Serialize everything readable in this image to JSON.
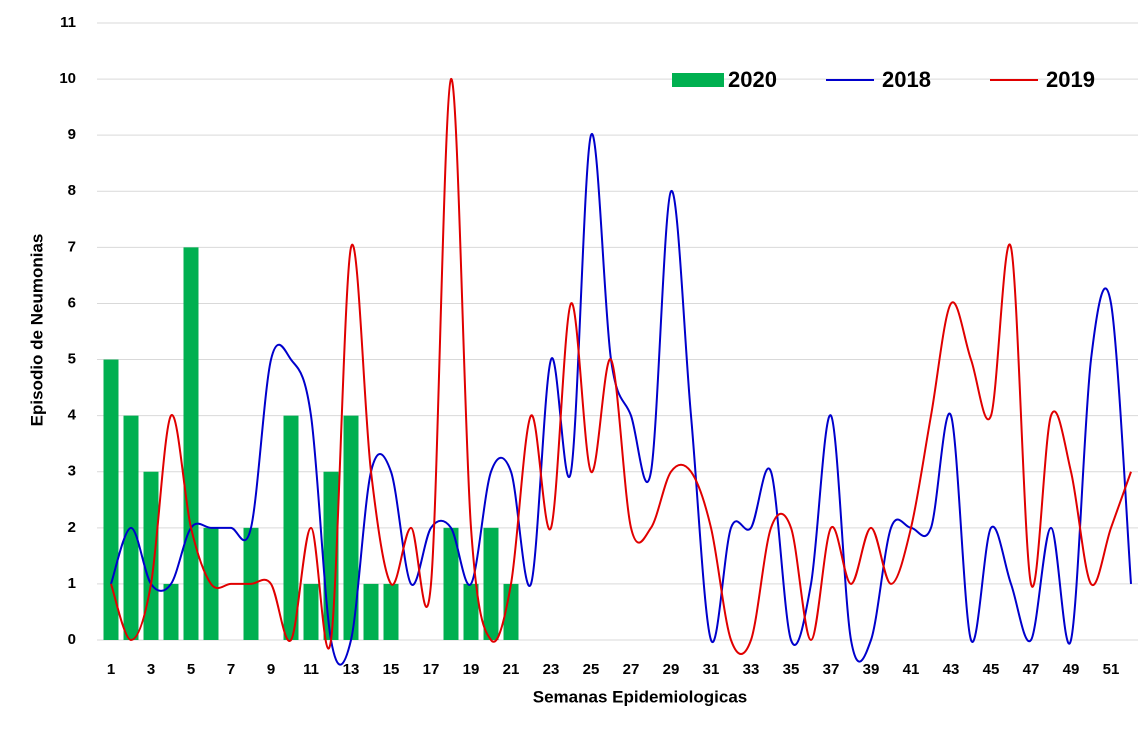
{
  "chart_data": {
    "type": "bar",
    "x_label": "Semanas Epidemiologicas",
    "y_label": "Episodio de Neumonias",
    "categories": [
      1,
      null,
      3,
      null,
      5,
      null,
      7,
      null,
      9,
      null,
      11,
      null,
      13,
      null,
      15,
      null,
      17,
      null,
      19,
      null,
      21,
      null,
      23,
      null,
      25,
      null,
      27,
      null,
      29,
      null,
      31,
      null,
      33,
      null,
      35,
      null,
      37,
      null,
      39,
      null,
      41,
      null,
      43,
      null,
      45,
      null,
      47,
      null,
      49,
      null,
      51,
      null
    ],
    "series": [
      {
        "name": "2020",
        "type": "bar",
        "color": "#00b050",
        "values": [
          5,
          4,
          3,
          1,
          7,
          2,
          0,
          2,
          0,
          4,
          1,
          3,
          4,
          1,
          1,
          0,
          0,
          2,
          1,
          2,
          1,
          null,
          null,
          null,
          null,
          null,
          null,
          null,
          null,
          null,
          null,
          null,
          null,
          null,
          null,
          null,
          null,
          null,
          null,
          null,
          null,
          null,
          null,
          null,
          null,
          null,
          null,
          null,
          null,
          null,
          null,
          null
        ]
      },
      {
        "name": "2018",
        "type": "line",
        "color": "#0000cc",
        "values": [
          1,
          2,
          1,
          1,
          2,
          2,
          2,
          2,
          5,
          5,
          4,
          0,
          0,
          3,
          3,
          1,
          2,
          2,
          1,
          3,
          3,
          1,
          5,
          3,
          9,
          5,
          4,
          3,
          8,
          4,
          0,
          2,
          2,
          3,
          0,
          1,
          4,
          0,
          0,
          2,
          2,
          2,
          4,
          0,
          2,
          1,
          0,
          2,
          0,
          5,
          6,
          1
        ]
      },
      {
        "name": "2019",
        "type": "line",
        "color": "#e00000",
        "values": [
          1,
          0,
          1,
          4,
          2,
          1,
          1,
          1,
          1,
          0,
          2,
          0,
          7,
          3,
          1,
          2,
          1,
          10,
          2,
          0,
          1,
          4,
          2,
          6,
          3,
          5,
          2,
          2,
          3,
          3,
          2,
          0,
          0,
          2,
          2,
          0,
          2,
          1,
          2,
          1,
          2,
          4,
          6,
          5,
          4,
          7,
          1,
          4,
          3,
          1,
          2,
          3
        ]
      }
    ],
    "ylim": [
      0,
      11
    ],
    "yticks": [
      0,
      1,
      2,
      3,
      4,
      5,
      6,
      7,
      8,
      9,
      10,
      11
    ],
    "grid": true
  }
}
